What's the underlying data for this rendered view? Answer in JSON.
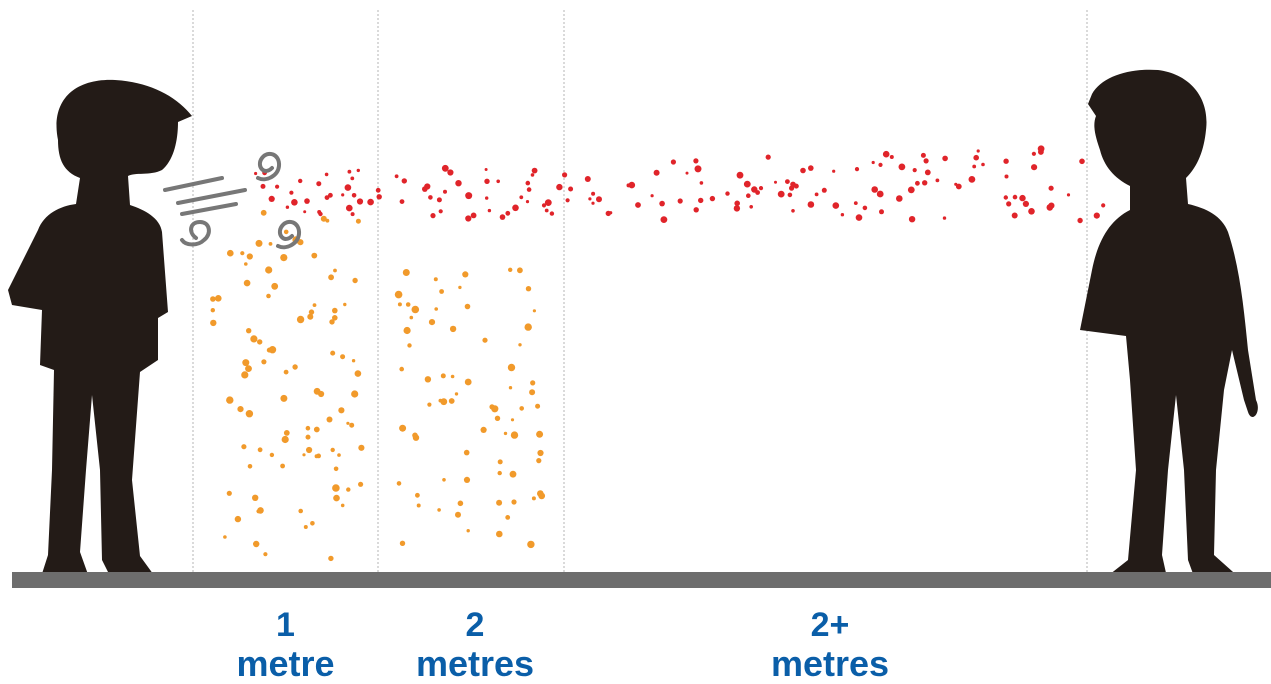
{
  "colors": {
    "person": "#231b17",
    "ground": "#6d6d6d",
    "divider": "#b5b5b5",
    "large_droplet": "#f19a2b",
    "aerosol": "#e0242a",
    "breath": "#777777",
    "label": "#0a5ea8"
  },
  "zones": [
    {
      "number": "1",
      "unit": "metre"
    },
    {
      "number": "2",
      "unit": "metres"
    },
    {
      "number": "2+",
      "unit": "metres"
    }
  ],
  "figures": {
    "left": "person-silhouette",
    "right": "person-silhouette"
  },
  "particles": {
    "large_droplets": "orange",
    "aerosols": "red"
  }
}
